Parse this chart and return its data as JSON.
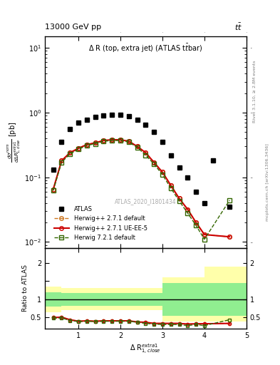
{
  "title_top": "13000 GeV pp",
  "title_right": "tt̅",
  "plot_title": "Δ R (top, extra jet) (ATLAS t̅tbar)",
  "watermark": "ATLAS_2020_I1801434",
  "right_label_top": "Rivet 3.1.10, ≥ 2.8M events",
  "right_label_bot": "mcplots.cern.ch [arXiv:1306.3436]",
  "xlabel": "Δ R₁,lose⁻¹",
  "ylabel_main": "dσⁿᵒʳᵐ / dΔ R₁,lose⁻¹ [pb]",
  "ylabel_ratio": "Ratio to ATLAS",
  "atlas_x": [
    0.4,
    0.6,
    0.8,
    1.0,
    1.2,
    1.4,
    1.6,
    1.8,
    2.0,
    2.2,
    2.4,
    2.6,
    2.8,
    3.0,
    3.2,
    3.4,
    3.6,
    3.8,
    4.0,
    4.2,
    4.6
  ],
  "atlas_y": [
    0.13,
    0.35,
    0.55,
    0.7,
    0.78,
    0.85,
    0.9,
    0.92,
    0.93,
    0.87,
    0.78,
    0.65,
    0.5,
    0.35,
    0.22,
    0.14,
    0.1,
    0.06,
    0.04,
    0.18,
    0.035
  ],
  "hw271_x": [
    0.4,
    0.6,
    0.8,
    1.0,
    1.2,
    1.4,
    1.6,
    1.8,
    2.0,
    2.2,
    2.4,
    2.6,
    2.8,
    3.0,
    3.2,
    3.4,
    3.6,
    3.8,
    4.0,
    4.6
  ],
  "hw271_y": [
    0.065,
    0.18,
    0.24,
    0.28,
    0.32,
    0.34,
    0.37,
    0.38,
    0.38,
    0.36,
    0.3,
    0.24,
    0.17,
    0.12,
    0.075,
    0.047,
    0.032,
    0.02,
    0.013,
    0.012
  ],
  "hw271ue_x": [
    0.4,
    0.6,
    0.8,
    1.0,
    1.2,
    1.4,
    1.6,
    1.8,
    2.0,
    2.2,
    2.4,
    2.6,
    2.8,
    3.0,
    3.2,
    3.4,
    3.6,
    3.8,
    4.0,
    4.6
  ],
  "hw271ue_y": [
    0.065,
    0.18,
    0.24,
    0.28,
    0.32,
    0.34,
    0.37,
    0.38,
    0.38,
    0.36,
    0.3,
    0.24,
    0.17,
    0.12,
    0.075,
    0.047,
    0.032,
    0.02,
    0.013,
    0.012
  ],
  "hw721_x": [
    0.4,
    0.6,
    0.8,
    1.0,
    1.2,
    1.4,
    1.6,
    1.8,
    2.0,
    2.2,
    2.4,
    2.6,
    2.8,
    3.0,
    3.2,
    3.4,
    3.6,
    3.8,
    4.0,
    4.6
  ],
  "hw721_y": [
    0.062,
    0.17,
    0.23,
    0.27,
    0.31,
    0.33,
    0.36,
    0.37,
    0.37,
    0.35,
    0.29,
    0.22,
    0.16,
    0.11,
    0.068,
    0.043,
    0.028,
    0.018,
    0.011,
    0.044
  ],
  "ratio_hw271_y": [
    0.5,
    0.51,
    0.44,
    0.4,
    0.41,
    0.4,
    0.41,
    0.41,
    0.41,
    0.41,
    0.38,
    0.37,
    0.34,
    0.34,
    0.34,
    0.34,
    0.32,
    0.33,
    0.33,
    0.34
  ],
  "ratio_hw271ue_y": [
    0.5,
    0.51,
    0.44,
    0.4,
    0.41,
    0.4,
    0.41,
    0.41,
    0.41,
    0.41,
    0.38,
    0.37,
    0.34,
    0.34,
    0.34,
    0.34,
    0.32,
    0.33,
    0.33,
    0.34
  ],
  "ratio_hw721_y": [
    0.48,
    0.49,
    0.42,
    0.39,
    0.4,
    0.39,
    0.4,
    0.4,
    0.4,
    0.4,
    0.37,
    0.34,
    0.32,
    0.31,
    0.31,
    0.31,
    0.28,
    0.31,
    0.28,
    0.44
  ],
  "band_x": [
    0.2,
    0.6,
    0.8,
    1.0,
    1.2,
    1.4,
    1.6,
    1.8,
    2.0,
    2.2,
    2.4,
    2.6,
    2.8,
    3.0,
    3.2,
    4.0,
    4.6,
    5.0
  ],
  "band_green_lo": [
    0.8,
    0.8,
    0.82,
    0.82,
    0.82,
    0.82,
    0.82,
    0.82,
    0.82,
    0.82,
    0.82,
    0.82,
    0.82,
    0.82,
    0.55,
    0.55,
    0.55,
    0.55
  ],
  "band_green_hi": [
    1.2,
    1.2,
    1.18,
    1.18,
    1.18,
    1.18,
    1.18,
    1.18,
    1.18,
    1.18,
    1.18,
    1.18,
    1.18,
    1.18,
    1.45,
    1.45,
    1.45,
    1.45
  ],
  "band_yellow_lo": [
    0.65,
    0.65,
    0.7,
    0.7,
    0.7,
    0.7,
    0.7,
    0.7,
    0.7,
    0.7,
    0.7,
    0.7,
    0.7,
    0.7,
    0.4,
    0.4,
    0.4,
    0.4
  ],
  "band_yellow_hi": [
    1.35,
    1.35,
    1.3,
    1.3,
    1.3,
    1.3,
    1.3,
    1.3,
    1.3,
    1.3,
    1.3,
    1.3,
    1.3,
    1.3,
    1.6,
    1.6,
    1.9,
    1.9
  ],
  "color_atlas": "#000000",
  "color_hw271": "#cc7722",
  "color_hw271ue": "#cc0000",
  "color_hw721": "#336600",
  "color_band_green": "#90ee90",
  "color_band_yellow": "#ffffaa",
  "ylim_main": [
    0.008,
    15.0
  ],
  "ylim_ratio": [
    0.2,
    2.4
  ],
  "xlim": [
    0.2,
    5.0
  ]
}
